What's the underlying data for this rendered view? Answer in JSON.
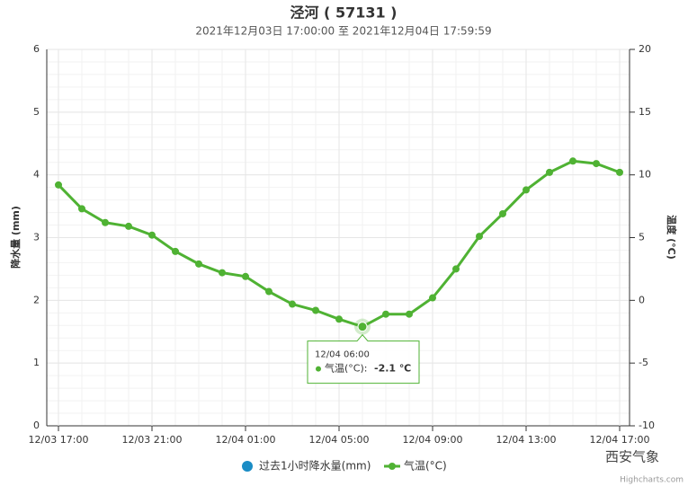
{
  "chart_data": {
    "type": "line",
    "title": "泾河 ( 57131 )",
    "subtitle": "2021年12月03日 17:00:00 至 2021年12月04日 17:59:59",
    "y_label": "降水量 (mm)",
    "y2_label": "温度 (°C)",
    "categories": [
      "12/03 17:00",
      null,
      null,
      null,
      "12/03 21:00",
      null,
      null,
      null,
      "12/04 01:00",
      null,
      null,
      null,
      "12/04 05:00",
      null,
      null,
      null,
      "12/04 09:00",
      null,
      null,
      null,
      "12/04 13:00",
      null,
      null,
      null,
      "12/04 17:00"
    ],
    "ylim": [
      0,
      6
    ],
    "yticks": [
      0,
      1,
      2,
      3,
      4,
      5,
      6
    ],
    "y2lim": [
      -10,
      20
    ],
    "y2ticks": [
      -10,
      -5,
      0,
      5,
      10,
      15,
      20
    ],
    "grid": true,
    "series": [
      {
        "name": "过去1小时降水量(mm)",
        "color": "#1a8cc5",
        "values": [
          0,
          0,
          0,
          0,
          0,
          0,
          0,
          0,
          0,
          0,
          0,
          0,
          0,
          0,
          0,
          0,
          0,
          0,
          0,
          0,
          0,
          0,
          0,
          0,
          0
        ]
      },
      {
        "name": "气温(°C)",
        "color": "#4fb233",
        "axis": "y2",
        "values": [
          9.2,
          7.3,
          6.2,
          5.9,
          5.2,
          3.9,
          2.9,
          2.2,
          1.9,
          0.7,
          -0.3,
          -0.8,
          -1.5,
          -2.1,
          -1.1,
          -1.1,
          0.2,
          2.5,
          5.1,
          6.9,
          8.8,
          10.2,
          11.1,
          10.9,
          10.2
        ]
      }
    ],
    "tooltip": {
      "label": "12/04 06:00",
      "series": "气温(°C):",
      "value": -2.1,
      "value_label": "-2.1 ℃",
      "index": 13
    },
    "watermark": "西安气象",
    "credits": "Highcharts.com"
  }
}
